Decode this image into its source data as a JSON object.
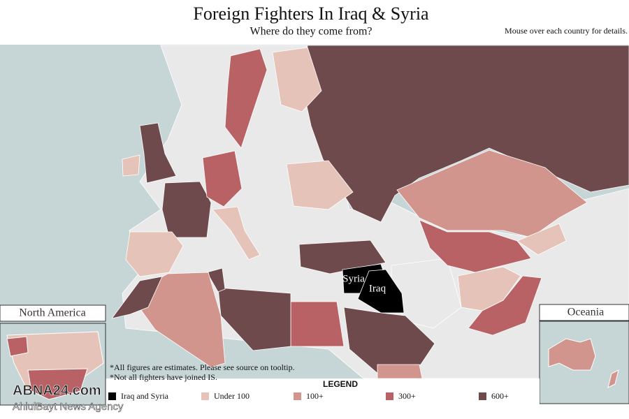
{
  "header": {
    "title": "Foreign Fighters In Iraq & Syria",
    "subtitle": "Where do they come from?",
    "instruction": "Mouse over each country for details."
  },
  "map": {
    "labels": [
      "Syria",
      "Iraq"
    ]
  },
  "insets": [
    "North America",
    "Oceania"
  ],
  "notes": [
    "*All figures are estimates. Please see source on tooltip.",
    "*Not all fighters have joined IS."
  ],
  "legend": {
    "title": "LEGEND",
    "items": [
      {
        "label": "Iraq and Syria",
        "color": "#000000"
      },
      {
        "label": "Under 100",
        "color": "#e6c3b8"
      },
      {
        "label": "100+",
        "color": "#d1958d"
      },
      {
        "label": "300+",
        "color": "#b86265"
      },
      {
        "label": "600+",
        "color": "#6e4a4c"
      }
    ]
  },
  "watermark": {
    "brand": "ABNA24.com",
    "tagline": "AhlulBayt News Agency"
  }
}
